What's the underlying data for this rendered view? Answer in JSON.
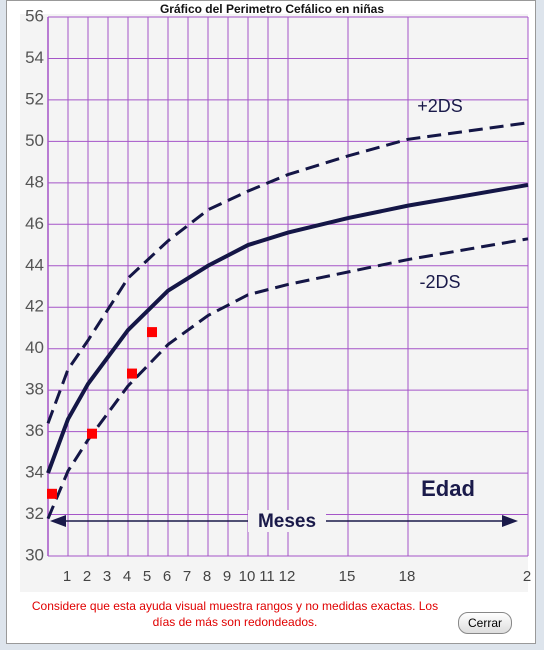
{
  "chart_data": {
    "type": "line",
    "title": "Gráfico del Perimetro Cefálico en niñas",
    "xlim": [
      0,
      24
    ],
    "xticks": [
      1,
      2,
      3,
      4,
      5,
      6,
      7,
      8,
      9,
      10,
      11,
      12,
      15,
      18,
      {
        "value": 24,
        "label": "2"
      }
    ],
    "ylim": [
      30,
      56
    ],
    "yticks": [
      30,
      32,
      34,
      36,
      38,
      40,
      42,
      44,
      46,
      48,
      50,
      52,
      54,
      56
    ],
    "grid": true,
    "grid_color": "#a555c8",
    "series": [
      {
        "style": "dashed",
        "color": "#141646",
        "x": [
          0,
          1,
          2,
          4,
          6,
          8,
          10,
          12,
          15,
          18,
          21,
          24
        ],
        "values": [
          36.4,
          39,
          40.4,
          43.4,
          45.2,
          46.7,
          47.6,
          48.4,
          49.3,
          50.1,
          50.5,
          50.9
        ]
      },
      {
        "style": "solid",
        "color": "#141646",
        "x": [
          0,
          1,
          2,
          4,
          6,
          8,
          10,
          12,
          15,
          18,
          21,
          24
        ],
        "values": [
          34,
          36.6,
          38.3,
          40.9,
          42.8,
          44,
          45,
          45.6,
          46.3,
          46.9,
          47.4,
          47.9
        ]
      },
      {
        "style": "dashed",
        "color": "#141646",
        "x": [
          0,
          1,
          2,
          4,
          6,
          8,
          10,
          12,
          15,
          18,
          21,
          24
        ],
        "values": [
          31.8,
          34.1,
          35.6,
          38.2,
          40.2,
          41.6,
          42.6,
          43.1,
          43.7,
          44.3,
          44.8,
          45.3
        ]
      },
      {
        "style": "markers",
        "color": "#ff0000",
        "x": [
          0.2,
          2.2,
          4.2,
          5.2
        ],
        "values": [
          33,
          35.9,
          38.8,
          40.8
        ]
      }
    ],
    "annotations": [
      "+2DS",
      "-2DS",
      "Edad",
      "Meses"
    ]
  },
  "note": "Considere que esta ayuda visual muestra rangos y no medidas exactas. Los días de más son redondeados.",
  "button": "Cerrar"
}
